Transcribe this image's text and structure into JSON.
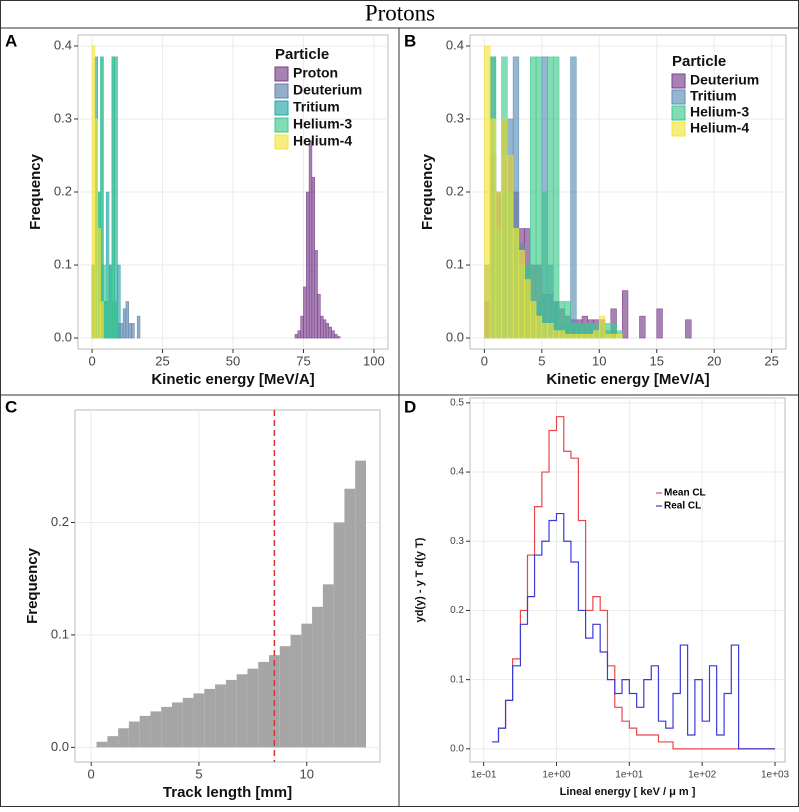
{
  "title": "Protons",
  "chart_data": [
    {
      "type": "histogram",
      "panel": "A",
      "xlabel": "Kinetic energy [MeV/A]",
      "ylabel": "Frequency",
      "legend_title": "Particle",
      "legend": "top-right",
      "xlim": [
        -5,
        105
      ],
      "ylim": [
        -0.015,
        0.415
      ],
      "xticks": [
        0,
        25,
        50,
        75,
        100
      ],
      "yticks": [
        {
          "value": 0,
          "label": "0.0"
        },
        {
          "value": 0.1,
          "label": "0.1"
        },
        {
          "value": 0.2,
          "label": "0.2"
        },
        {
          "value": 0.3,
          "label": "0.3"
        },
        {
          "value": 0.4,
          "label": "0.4"
        }
      ],
      "grid": true,
      "series": [
        {
          "name": "Proton",
          "color": "#7b3f8c",
          "bins": [
            72,
            73,
            74,
            75,
            76,
            77,
            78,
            79,
            80,
            81,
            82,
            83,
            84,
            85,
            86,
            87,
            88
          ],
          "values": [
            0.005,
            0.01,
            0.03,
            0.07,
            0.2,
            0.27,
            0.22,
            0.12,
            0.06,
            0.03,
            0.025,
            0.02,
            0.015,
            0.01,
            0.005,
            0.002
          ]
        },
        {
          "name": "Deuterium",
          "color": "#5b82ad",
          "bins": [
            0,
            1,
            2,
            3,
            4,
            5,
            6,
            7,
            8,
            9,
            10,
            11,
            12,
            13,
            14,
            15,
            16,
            17
          ],
          "values": [
            0.1,
            0.2,
            0.15,
            0.1,
            0.05,
            0.05,
            0.1,
            0.05,
            0.05,
            0.02,
            0.02,
            0.04,
            0.05,
            0.02,
            0.02,
            0,
            0.03
          ]
        },
        {
          "name": "Tritium",
          "color": "#26a6a6",
          "bins": [
            0,
            1,
            2,
            3,
            4,
            5,
            6,
            7,
            8,
            9,
            10
          ],
          "values": [
            0.1,
            0.385,
            0.2,
            0.385,
            0.05,
            0.2,
            0.1,
            0.385,
            0.385,
            0.1
          ]
        },
        {
          "name": "Helium-3",
          "color": "#3fc98f",
          "bins": [
            0,
            1,
            2,
            3,
            4,
            5,
            6,
            7,
            8,
            9,
            10
          ],
          "values": [
            0.1,
            0.3,
            0.2,
            0.385,
            0.1,
            0.05,
            0.1,
            0.385,
            0.05,
            0
          ]
        },
        {
          "name": "Helium-4",
          "color": "#f5e43a",
          "bins": [
            0,
            1,
            2,
            3,
            4
          ],
          "values": [
            0.4,
            0.3,
            0.15,
            0.05
          ]
        }
      ]
    },
    {
      "type": "histogram",
      "panel": "B",
      "xlabel": "Kinetic energy [MeV/A]",
      "ylabel": "Frequency",
      "legend_title": "Particle",
      "legend": "top-right",
      "xlim": [
        -1.25,
        26.25
      ],
      "ylim": [
        -0.015,
        0.415
      ],
      "xticks": [
        0,
        5,
        10,
        15,
        20,
        25
      ],
      "yticks": [
        {
          "value": 0,
          "label": "0.0"
        },
        {
          "value": 0.1,
          "label": "0.1"
        },
        {
          "value": 0.2,
          "label": "0.2"
        },
        {
          "value": 0.3,
          "label": "0.3"
        },
        {
          "value": 0.4,
          "label": "0.4"
        }
      ],
      "grid": true,
      "series": [
        {
          "name": "Deuterium",
          "color": "#7b3f8c",
          "bins": [
            0,
            0.5,
            1,
            1.5,
            2,
            2.5,
            3,
            3.5,
            4,
            4.5,
            5,
            5.5,
            6,
            6.5,
            7,
            7.5,
            8,
            8.5,
            9,
            9.5,
            10,
            10.5,
            11,
            11.5,
            12,
            12.5,
            13,
            13.5,
            14,
            14.5,
            15,
            15.5,
            16,
            16.5,
            17,
            17.5,
            18
          ],
          "values": [
            0.05,
            0.25,
            0.2,
            0.3,
            0.25,
            0.2,
            0.15,
            0.15,
            0.1,
            0.1,
            0.06,
            0.06,
            0.05,
            0.04,
            0.03,
            0.025,
            0.025,
            0.03,
            0.025,
            0.025,
            0.025,
            0,
            0.04,
            0,
            0.065,
            0,
            0,
            0.03,
            0,
            0,
            0.04,
            0,
            0,
            0,
            0,
            0.025
          ]
        },
        {
          "name": "Tritium",
          "color": "#5b8fb5",
          "bins": [
            0,
            0.5,
            1,
            1.5,
            2,
            2.5,
            3,
            3.5,
            4,
            4.5,
            5,
            5.5,
            6,
            6.5,
            7,
            7.5,
            8,
            8.5,
            9,
            9.5,
            10,
            10.5,
            11,
            11.5,
            12
          ],
          "values": [
            0.1,
            0.385,
            0.2,
            0.2,
            0.3,
            0.385,
            0.13,
            0.1,
            0.05,
            0.05,
            0.385,
            0.1,
            0.05,
            0.02,
            0.02,
            0.385,
            0.02,
            0.02,
            0.02,
            0.01,
            0.01,
            0.01,
            0.01,
            0
          ]
        },
        {
          "name": "Helium-3",
          "color": "#3fc98f",
          "bins": [
            0,
            0.5,
            1,
            1.5,
            2,
            2.5,
            3,
            3.5,
            4,
            4.5,
            5,
            5.5,
            6,
            6.5,
            7,
            7.5,
            8,
            8.5,
            9,
            9.5,
            10,
            10.5,
            11,
            11.5,
            12
          ],
          "values": [
            0,
            0.385,
            0.15,
            0.385,
            0.2,
            0.15,
            0.1,
            0.1,
            0.385,
            0.385,
            0.2,
            0.385,
            0.385,
            0.05,
            0.05,
            0.02,
            0.02,
            0.02,
            0.02,
            0.02,
            0.02,
            0.02,
            0.02,
            0.01
          ]
        },
        {
          "name": "Helium-4",
          "color": "#f5e43a",
          "bins": [
            0,
            0.5,
            1,
            1.5,
            2,
            2.5,
            3,
            3.5,
            4,
            4.5,
            5,
            5.5,
            6,
            6.5,
            7,
            7.5,
            8,
            8.5,
            9,
            9.5,
            10,
            10.5,
            11,
            11.5,
            12
          ],
          "values": [
            0.4,
            0.3,
            0.2,
            0.3,
            0.25,
            0.15,
            0.12,
            0.08,
            0.05,
            0.03,
            0.02,
            0.02,
            0.01,
            0.01,
            0.005,
            0.005,
            0.005,
            0.005,
            0.005,
            0.01,
            0.03,
            0.005,
            0.005,
            0.005
          ]
        }
      ]
    },
    {
      "type": "histogram",
      "panel": "C",
      "xlabel": "Track length [mm]",
      "ylabel": "Frequency",
      "xlim": [
        -0.75,
        13.4
      ],
      "ylim": [
        -0.013,
        0.3
      ],
      "xticks": [
        0,
        5,
        10
      ],
      "yticks": [
        {
          "value": 0,
          "label": "0.0"
        },
        {
          "value": 0.1,
          "label": "0.1"
        },
        {
          "value": 0.2,
          "label": "0.2"
        }
      ],
      "grid": true,
      "vline": 8.5,
      "vline_color": "#e0302f",
      "series": [
        {
          "color": "#a6a6a6",
          "bins": [
            0.25,
            0.75,
            1.25,
            1.75,
            2.25,
            2.75,
            3.25,
            3.75,
            4.25,
            4.75,
            5.25,
            5.75,
            6.25,
            6.75,
            7.25,
            7.75,
            8.25,
            8.75,
            9.25,
            9.75,
            10.25,
            10.75,
            11.25,
            11.75,
            12.25,
            12.75
          ],
          "values": [
            0.005,
            0.01,
            0.017,
            0.023,
            0.028,
            0.032,
            0.036,
            0.04,
            0.044,
            0.048,
            0.052,
            0.056,
            0.06,
            0.065,
            0.07,
            0.076,
            0.082,
            0.09,
            0.1,
            0.11,
            0.125,
            0.145,
            0.2,
            0.23,
            0.255
          ]
        }
      ]
    },
    {
      "type": "step",
      "panel": "D",
      "xlabel": "Lineal energy [ keV / μ m ]",
      "ylabel": "yd(y) - y T d(y T)",
      "xlog": true,
      "legend": "top-right",
      "xlim": [
        0.065,
        1370
      ],
      "ylim": [
        -0.019,
        0.507
      ],
      "xticks": [
        {
          "value": 0.1,
          "label": "1e-01"
        },
        {
          "value": 1,
          "label": "1e+00"
        },
        {
          "value": 10,
          "label": "1e+01"
        },
        {
          "value": 100,
          "label": "1e+02"
        },
        {
          "value": 1000,
          "label": "1e+03"
        }
      ],
      "yticks": [
        {
          "value": 0,
          "label": "0.0"
        },
        {
          "value": 0.1,
          "label": "0.1"
        },
        {
          "value": 0.2,
          "label": "0.2"
        },
        {
          "value": 0.3,
          "label": "0.3"
        },
        {
          "value": 0.4,
          "label": "0.4"
        },
        {
          "value": 0.5,
          "label": "0.5"
        }
      ],
      "grid": true,
      "x": [
        0.13,
        0.16,
        0.2,
        0.25,
        0.32,
        0.4,
        0.5,
        0.63,
        0.79,
        1,
        1.26,
        1.58,
        2,
        2.51,
        3.16,
        3.98,
        5.01,
        6.31,
        7.94,
        10,
        12.6,
        15.8,
        20,
        25.1,
        31.6,
        39.8,
        50.1,
        63.1,
        79.4,
        100,
        126,
        158,
        200,
        251,
        316,
        1000
      ],
      "series": [
        {
          "name": "Mean CL",
          "color": "#e8474a",
          "values": [
            0.01,
            0.03,
            0.07,
            0.13,
            0.2,
            0.28,
            0.35,
            0.4,
            0.46,
            0.48,
            0.43,
            0.42,
            0.33,
            0.2,
            0.22,
            0.2,
            0.12,
            0.06,
            0.04,
            0.03,
            0.02,
            0.02,
            0.02,
            0.01,
            0.01,
            0,
            0,
            0,
            0,
            0,
            0,
            0,
            0,
            0,
            0,
            0
          ]
        },
        {
          "name": "Real CL",
          "color": "#3b3bd6",
          "values": [
            0.01,
            0.03,
            0.07,
            0.12,
            0.18,
            0.22,
            0.28,
            0.3,
            0.33,
            0.34,
            0.3,
            0.27,
            0.2,
            0.16,
            0.18,
            0.14,
            0.1,
            0.08,
            0.1,
            0.08,
            0.06,
            0.1,
            0.12,
            0.04,
            0.03,
            0.08,
            0.15,
            0.02,
            0.1,
            0.04,
            0.12,
            0.02,
            0.08,
            0.15,
            0,
            0
          ]
        }
      ]
    }
  ]
}
